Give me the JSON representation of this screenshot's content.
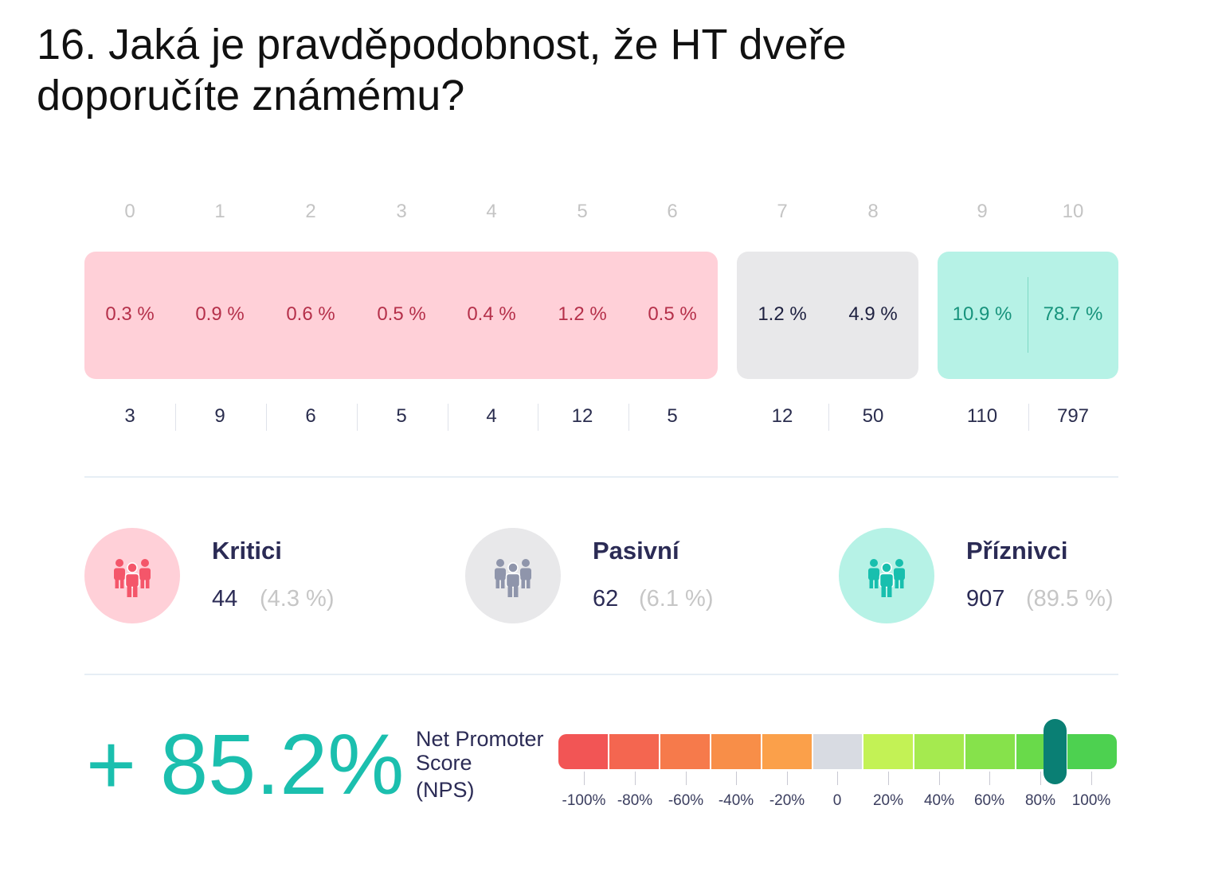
{
  "question": {
    "line1": "16. Jaká je pravděpodobnost, že HT dveře",
    "line2": "doporučíte známému?"
  },
  "scale": [
    "0",
    "1",
    "2",
    "3",
    "4",
    "5",
    "6",
    "7",
    "8",
    "9",
    "10"
  ],
  "percentages": [
    "0.3 %",
    "0.9 %",
    "0.6 %",
    "0.5 %",
    "0.4 %",
    "1.2 %",
    "0.5 %",
    "1.2 %",
    "4.9 %",
    "10.9 %",
    "78.7 %"
  ],
  "counts": [
    "3",
    "9",
    "6",
    "5",
    "4",
    "12",
    "5",
    "12",
    "50",
    "110",
    "797"
  ],
  "categories": {
    "detractors": {
      "name": "Kritici",
      "count": "44",
      "pct": "(4.3 %)",
      "color": "#f4566a",
      "bg": "#ffd0d8",
      "icon": "people-group-icon"
    },
    "passives": {
      "name": "Pasivní",
      "count": "62",
      "pct": "(6.1 %)",
      "color": "#8f95ab",
      "bg": "#e8e8ea",
      "icon": "people-group-icon"
    },
    "promoters": {
      "name": "Příznivci",
      "count": "907",
      "pct": "(89.5 %)",
      "color": "#18bfae",
      "bg": "#b6f2e6",
      "icon": "people-group-icon"
    }
  },
  "nps": {
    "score_text": "+ 85.2%",
    "score_value": 85.2,
    "label_line1": "Net Promoter",
    "label_line2": "Score",
    "label_line3": "(NPS)",
    "ticks": [
      "-100%",
      "-80%",
      "-60%",
      "-40%",
      "-20%",
      "0",
      "20%",
      "40%",
      "60%",
      "80%",
      "100%"
    ],
    "segment_colors": [
      "#f25555",
      "#f46650",
      "#f67a4b",
      "#f88e48",
      "#fba04a",
      "#d8dbe2",
      "#c3f255",
      "#a5ea4f",
      "#86e24b",
      "#69da4a",
      "#4dd150"
    ],
    "marker_color": "#0a7f74"
  }
}
